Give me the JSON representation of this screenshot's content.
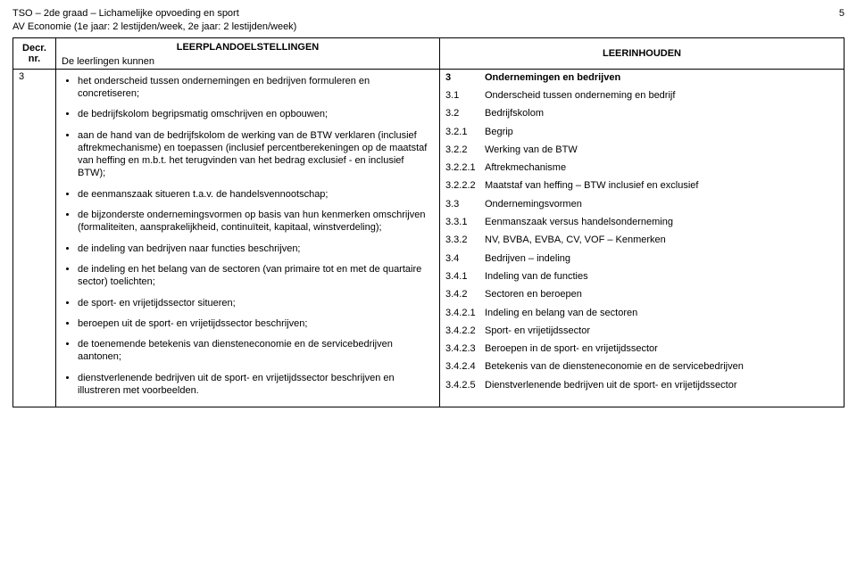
{
  "header": {
    "line1": "TSO – 2de graad – Lichamelijke opvoeding en sport",
    "line2": "AV Economie (1e jaar: 2 lestijden/week, 2e jaar: 2 lestijden/week)",
    "page": "5"
  },
  "table": {
    "col1_head_line1": "Decr. nr.",
    "col2_head": "LEERPLANDOELSTELLINGEN",
    "col2_sub": "De leerlingen kunnen",
    "col3_head": "LEERINHOUDEN",
    "leftNumber": "3",
    "bullets": [
      "het onderscheid tussen ondernemingen en bedrijven formuleren en concretiseren;",
      "de bedrijfskolom begripsmatig omschrijven en opbouwen;",
      "aan de hand van de bedrijfskolom de werking van de BTW verklaren (inclusief aftrekmechanisme) en toepassen (inclusief percentberekeningen op de maatstaf van heffing en m.b.t. het terugvinden van het bedrag exclusief - en inclusief BTW);",
      "de eenmanszaak situeren t.a.v. de handelsvennootschap;",
      "de bijzonderste ondernemingsvormen op basis van hun kenmerken omschrijven (formaliteiten, aansprakelijkheid, continuïteit, kapitaal, winstverdeling);",
      "de indeling van bedrijven naar functies beschrijven;",
      "de indeling en het belang van de sectoren (van primaire tot en met de quartaire sector) toelichten;",
      "de sport- en vrijetijdssector situeren;",
      "beroepen uit de sport- en vrijetijdssector beschrijven;",
      "de toenemende betekenis van diensteneconomie en de servicebedrijven aantonen;",
      "dienstverlenende bedrijven uit de sport- en vrijetijdssector beschrijven en illustreren met voorbeelden."
    ],
    "right": [
      {
        "n": "3",
        "t": "Ondernemingen en bedrijven",
        "b": true
      },
      {
        "n": "3.1",
        "t": "Onderscheid tussen onderneming en bedrijf"
      },
      {
        "n": "3.2",
        "t": "Bedrijfskolom"
      },
      {
        "n": "3.2.1",
        "t": "Begrip"
      },
      {
        "n": "3.2.2",
        "t": "Werking van de BTW"
      },
      {
        "n": "3.2.2.1",
        "t": "Aftrekmechanisme"
      },
      {
        "n": "3.2.2.2",
        "t": "Maatstaf van heffing – BTW inclusief en exclusief"
      },
      {
        "n": "3.3",
        "t": "Ondernemingsvormen"
      },
      {
        "n": "3.3.1",
        "t": "Eenmanszaak versus handelsonderneming"
      },
      {
        "n": "3.3.2",
        "t": "NV, BVBA, EVBA, CV, VOF – Kenmerken"
      },
      {
        "n": "3.4",
        "t": "Bedrijven – indeling"
      },
      {
        "n": "3.4.1",
        "t": "Indeling van de functies"
      },
      {
        "n": "3.4.2",
        "t": "Sectoren en beroepen"
      },
      {
        "n": "3.4.2.1",
        "t": "Indeling en belang van de sectoren"
      },
      {
        "n": "3.4.2.2",
        "t": "Sport- en vrijetijdssector"
      },
      {
        "n": "3.4.2.3",
        "t": "Beroepen in de sport- en vrijetijdssector"
      },
      {
        "n": "3.4.2.4",
        "t": "Betekenis van de diensteneconomie en de servicebedrijven"
      },
      {
        "n": "3.4.2.5",
        "t": "Dienstverlenende bedrijven uit de sport- en vrijetijdssector"
      }
    ]
  }
}
